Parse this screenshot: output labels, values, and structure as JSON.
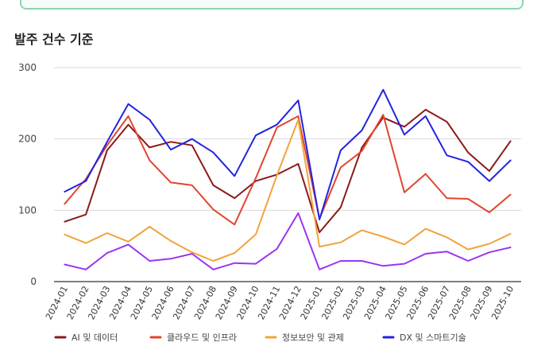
{
  "chart_data": {
    "type": "line",
    "title": "발주 건수 기준",
    "ylim": [
      0,
      300
    ],
    "yticks": [
      0,
      100,
      200,
      300
    ],
    "grid": true,
    "legend_position": "bottom",
    "categories": [
      "2024-01",
      "2024-02",
      "2024-03",
      "2024-04",
      "2024-05",
      "2024-06",
      "2024-07",
      "2024-08",
      "2024-09",
      "2024-10",
      "2024-11",
      "2024-12",
      "2025-01",
      "2025-02",
      "2025-03",
      "2025-04",
      "2025-05",
      "2025-06",
      "2025-07",
      "2025-08",
      "2025-09",
      "2025-10"
    ],
    "series": [
      {
        "name": "AI 및 데이터",
        "color": "#8b1a1a",
        "values": [
          84,
          94,
          184,
          220,
          188,
          196,
          191,
          135,
          117,
          141,
          150,
          165,
          69,
          104,
          188,
          230,
          217,
          241,
          224,
          181,
          155,
          197
        ]
      },
      {
        "name": "클라우드 및 인프라",
        "color": "#e0452e",
        "values": [
          109,
          144,
          191,
          232,
          170,
          139,
          135,
          101,
          80,
          145,
          216,
          232,
          88,
          160,
          183,
          234,
          125,
          151,
          117,
          116,
          97,
          122
        ]
      },
      {
        "name": "정보보안 및 관제",
        "color": "#f0a43a",
        "values": [
          66,
          54,
          68,
          56,
          77,
          57,
          41,
          29,
          40,
          66,
          149,
          227,
          49,
          55,
          72,
          63,
          52,
          74,
          62,
          45,
          53,
          67
        ]
      },
      {
        "name": "DX 및 스마트기술",
        "color": "#2323e0",
        "values": [
          126,
          141,
          196,
          249,
          227,
          185,
          200,
          181,
          148,
          205,
          220,
          254,
          87,
          184,
          212,
          269,
          206,
          232,
          177,
          168,
          141,
          170
        ]
      },
      {
        "name": "",
        "color": "#9b35f0",
        "values": [
          24,
          17,
          40,
          52,
          29,
          32,
          39,
          17,
          26,
          25,
          46,
          96,
          17,
          29,
          29,
          22,
          25,
          39,
          42,
          29,
          41,
          48
        ]
      }
    ]
  }
}
